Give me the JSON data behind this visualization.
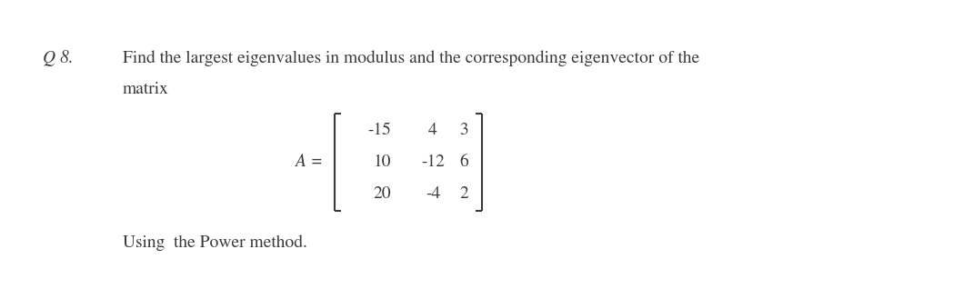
{
  "background_color": "#ffffff",
  "question_label": "Q 8.",
  "question_text_line1": "Find the largest eigenvalues in modulus and the corresponding eigenvector of the",
  "question_text_line2": "matrix",
  "matrix_label": "A =",
  "matrix_rows": [
    [
      "-15",
      "4",
      "3"
    ],
    [
      "10",
      "-12",
      "6"
    ],
    [
      "20",
      "-4",
      "2"
    ]
  ],
  "footer_text": "Using  the Power method.",
  "font_family": "STIXGeneral",
  "text_color": "#3a3a3a",
  "fontsize_main": 14,
  "fontsize_matrix": 14
}
